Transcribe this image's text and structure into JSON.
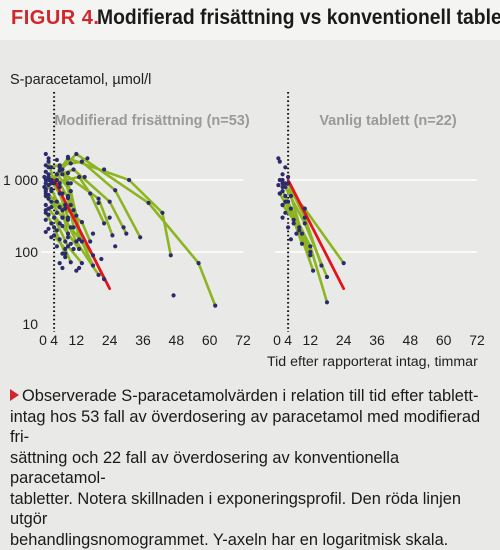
{
  "figure": {
    "number": "FIGUR 4.",
    "title": "Modifierad frisättning vs konventionell tablett"
  },
  "caption": {
    "lines": [
      "Observerade S-paracetamolvärden i relation till tid efter tablett-",
      "intag hos 53 fall av överdosering av paracetamol med modifierad fri-",
      "sättning och 22 fall av överdosering av konventionella paracetamol-",
      "tabletter. Notera skillnaden i exponeringsprofil. Den röda linjen utgör",
      "behandlingsnomogrammet. Y-axeln har en logaritmisk skala."
    ]
  },
  "colors": {
    "green": "#8db521",
    "red": "#e3141b",
    "dot": "#2b2a6c",
    "panel_label": "#9a9a9a",
    "grid": "#ffffff"
  },
  "chart_data": {
    "type": "scatter",
    "ylabel": "S-paracetamol, µmol/l",
    "xlabel": "Tid efter rapporterat intag, timmar",
    "y_scale": "log",
    "ylim": [
      10,
      3000
    ],
    "y_ticks": [
      10,
      100,
      1000
    ],
    "y_tick_labels": [
      "10",
      "100",
      "1 000"
    ],
    "grid": "horizontal at 100 and 1000",
    "panels": [
      {
        "label": "Modifierad frisättning (n=53)",
        "xlim": [
          0,
          72
        ],
        "x_ticks": [
          0,
          4,
          12,
          24,
          36,
          48,
          60,
          72
        ],
        "x_tick_labels": [
          "0",
          "4",
          "12",
          "24",
          "36",
          "48",
          "60",
          "72"
        ],
        "reference_time": 4,
        "nomogram": [
          [
            4,
            1000
          ],
          [
            24,
            31
          ]
        ],
        "series": [
          [
            [
              3,
              1000
            ],
            [
              12,
              2300
            ],
            [
              38,
              480
            ],
            [
              56,
              70
            ],
            [
              62,
              18
            ]
          ],
          [
            [
              1,
              750
            ],
            [
              9,
              2000
            ],
            [
              31,
              1000
            ],
            [
              43,
              350
            ],
            [
              46,
              90
            ]
          ],
          [
            [
              2,
              1500
            ],
            [
              14,
              1800
            ],
            [
              26,
              720
            ],
            [
              35,
              160
            ]
          ],
          [
            [
              1,
              1000
            ],
            [
              11,
              1400
            ],
            [
              24,
              500
            ],
            [
              30,
              180
            ]
          ],
          [
            [
              1,
              700
            ],
            [
              6,
              1350
            ],
            [
              20,
              550
            ],
            [
              25,
              170
            ]
          ],
          [
            [
              3,
              900
            ],
            [
              13,
              1100
            ],
            [
              17,
              650
            ],
            [
              22,
              250
            ]
          ],
          [
            [
              2,
              620
            ],
            [
              8,
              400
            ],
            [
              14,
              260
            ],
            [
              17,
              140
            ]
          ],
          [
            [
              1,
              600
            ],
            [
              7,
              300
            ],
            [
              18,
              90
            ],
            [
              22,
              42
            ]
          ],
          [
            [
              3,
              750
            ],
            [
              12,
              140
            ],
            [
              20,
              48
            ]
          ],
          [
            [
              5,
              1200
            ],
            [
              10,
              700
            ],
            [
              14,
              140
            ],
            [
              18,
              65
            ]
          ],
          [
            [
              2,
              400
            ],
            [
              7,
              230
            ],
            [
              13,
              110
            ]
          ],
          [
            [
              6,
              1600
            ],
            [
              9,
              900
            ],
            [
              12,
              320
            ]
          ],
          [
            [
              4,
              300
            ],
            [
              9,
              120
            ],
            [
              14,
              70
            ]
          ],
          [
            [
              3,
              500
            ],
            [
              7,
              380
            ],
            [
              9,
              180
            ]
          ],
          [
            [
              2,
              1800
            ],
            [
              4,
              900
            ],
            [
              8,
              450
            ]
          ],
          [
            [
              6,
              900
            ],
            [
              9,
              560
            ],
            [
              11,
              220
            ]
          ],
          [
            [
              1,
              350
            ],
            [
              4,
              220
            ],
            [
              8,
              95
            ]
          ],
          [
            [
              7,
              1400
            ],
            [
              11,
              380
            ],
            [
              13,
              150
            ]
          ],
          [
            [
              4,
              170
            ],
            [
              8,
              110
            ],
            [
              10,
              72
            ]
          ],
          [
            [
              2,
              1100
            ],
            [
              6,
              650
            ],
            [
              9,
              300
            ]
          ]
        ],
        "points": [
          [
            1,
            2300
          ],
          [
            2,
            2000
          ],
          [
            1,
            1600
          ],
          [
            3,
            1500
          ],
          [
            1,
            1300
          ],
          [
            2,
            1200
          ],
          [
            0.5,
            1100
          ],
          [
            2,
            1000
          ],
          [
            3,
            950
          ],
          [
            1,
            900
          ],
          [
            2,
            850
          ],
          [
            0.5,
            800
          ],
          [
            3,
            700
          ],
          [
            1,
            650
          ],
          [
            2,
            550
          ],
          [
            1,
            450
          ],
          [
            3,
            420
          ],
          [
            1,
            380
          ],
          [
            2,
            330
          ],
          [
            1,
            280
          ],
          [
            3,
            250
          ],
          [
            2,
            210
          ],
          [
            1,
            190
          ],
          [
            3,
            160
          ],
          [
            5,
            1900
          ],
          [
            6,
            1500
          ],
          [
            7,
            1200
          ],
          [
            5,
            1000
          ],
          [
            6,
            800
          ],
          [
            7,
            650
          ],
          [
            5,
            500
          ],
          [
            6,
            420
          ],
          [
            5,
            350
          ],
          [
            7,
            300
          ],
          [
            6,
            250
          ],
          [
            5,
            200
          ],
          [
            6,
            150
          ],
          [
            5,
            120
          ],
          [
            7,
            95
          ],
          [
            6,
            70
          ],
          [
            8,
            85
          ],
          [
            7,
            60
          ],
          [
            9,
            2100
          ],
          [
            10,
            1700
          ],
          [
            9,
            1250
          ],
          [
            10,
            900
          ],
          [
            9,
            600
          ],
          [
            10,
            450
          ],
          [
            9,
            280
          ],
          [
            10,
            220
          ],
          [
            9,
            160
          ],
          [
            10,
            130
          ],
          [
            8,
            140
          ],
          [
            11,
            110
          ],
          [
            12,
            55
          ],
          [
            13,
            60
          ],
          [
            16,
            2000
          ],
          [
            22,
            1400
          ],
          [
            15,
            1100
          ],
          [
            20,
            480
          ],
          [
            24,
            300
          ],
          [
            18,
            180
          ],
          [
            26,
            120
          ],
          [
            21,
            80
          ],
          [
            29,
            220
          ],
          [
            47,
            25
          ]
        ]
      },
      {
        "label": "Vanlig tablett (n=22)",
        "xlim": [
          0,
          72
        ],
        "x_ticks": [
          0,
          4,
          12,
          24,
          36,
          48,
          60,
          72
        ],
        "x_tick_labels": [
          "0",
          "4",
          "12",
          "24",
          "36",
          "48",
          "60",
          "72"
        ],
        "reference_time": 4,
        "nomogram": [
          [
            4,
            1000
          ],
          [
            24,
            31
          ]
        ],
        "series": [
          [
            [
              2,
              900
            ],
            [
              10,
              400
            ],
            [
              24,
              70
            ]
          ],
          [
            [
              3,
              800
            ],
            [
              10,
              250
            ],
            [
              18,
              45
            ]
          ],
          [
            [
              2,
              700
            ],
            [
              12,
              120
            ],
            [
              18,
              20
            ]
          ],
          [
            [
              4,
              900
            ],
            [
              10,
              300
            ],
            [
              16,
              65
            ]
          ],
          [
            [
              1,
              650
            ],
            [
              8,
              220
            ],
            [
              12,
              90
            ]
          ],
          [
            [
              5,
              600
            ],
            [
              9,
              180
            ],
            [
              12,
              100
            ]
          ],
          [
            [
              3,
              500
            ],
            [
              8,
              200
            ],
            [
              13,
              55
            ]
          ],
          [
            [
              2,
              450
            ],
            [
              6,
              280
            ],
            [
              9,
              130
            ]
          ]
        ],
        "points": [
          [
            0.5,
            2000
          ],
          [
            1,
            1800
          ],
          [
            3,
            1500
          ],
          [
            2,
            1200
          ],
          [
            1,
            1000
          ],
          [
            4,
            1100
          ],
          [
            2,
            1000
          ],
          [
            3,
            900
          ],
          [
            0.5,
            850
          ],
          [
            2,
            800
          ],
          [
            1,
            650
          ],
          [
            3,
            600
          ],
          [
            4,
            500
          ],
          [
            2,
            450
          ],
          [
            5,
            400
          ],
          [
            3,
            350
          ],
          [
            6,
            250
          ],
          [
            4,
            220
          ],
          [
            2,
            300
          ],
          [
            7,
            180
          ],
          [
            5,
            150
          ]
        ]
      }
    ]
  }
}
